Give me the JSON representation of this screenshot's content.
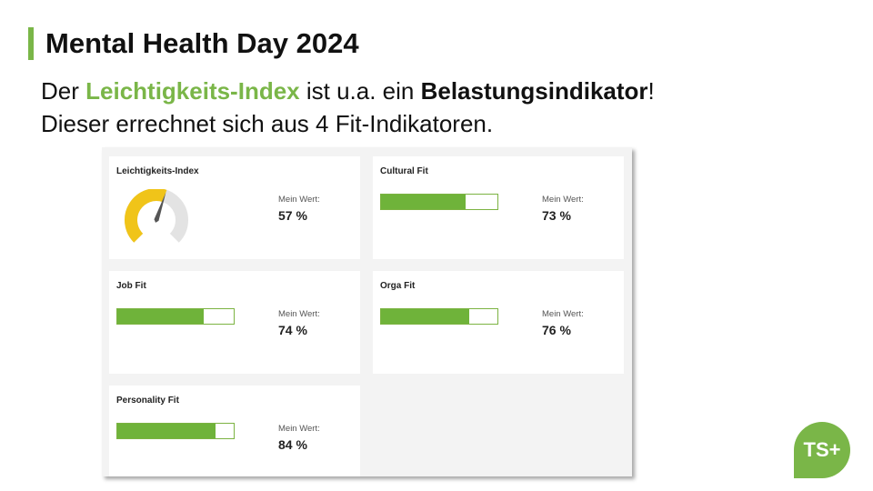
{
  "slide": {
    "title": "Mental Health Day 2024",
    "line1": {
      "pre": "Der ",
      "highlight": "Leichtigkeits-Index",
      "mid": " ist u.a. ein ",
      "bold": "Belastungsindikator",
      "post": "!"
    },
    "line2": "Dieser errechnet sich aus 4 Fit-Indikatoren."
  },
  "colors": {
    "accent": "#7ab648",
    "bar": "#6fb33a",
    "gauge_fill": "#f0c419",
    "gauge_track": "#e3e3e3"
  },
  "cards": [
    {
      "title": "Leichtigkeits-Index",
      "label": "Mein Wert:",
      "value_text": "57 %",
      "value": 57,
      "type": "gauge"
    },
    {
      "title": "Cultural Fit",
      "label": "Mein Wert:",
      "value_text": "73 %",
      "value": 73,
      "type": "bar"
    },
    {
      "title": "Job Fit",
      "label": "Mein Wert:",
      "value_text": "74 %",
      "value": 74,
      "type": "bar"
    },
    {
      "title": "Orga Fit",
      "label": "Mein Wert:",
      "value_text": "76 %",
      "value": 76,
      "type": "bar"
    },
    {
      "title": "Personality Fit",
      "label": "Mein Wert:",
      "value_text": "84 %",
      "value": 84,
      "type": "bar"
    }
  ],
  "logo": {
    "text": "TS+"
  }
}
